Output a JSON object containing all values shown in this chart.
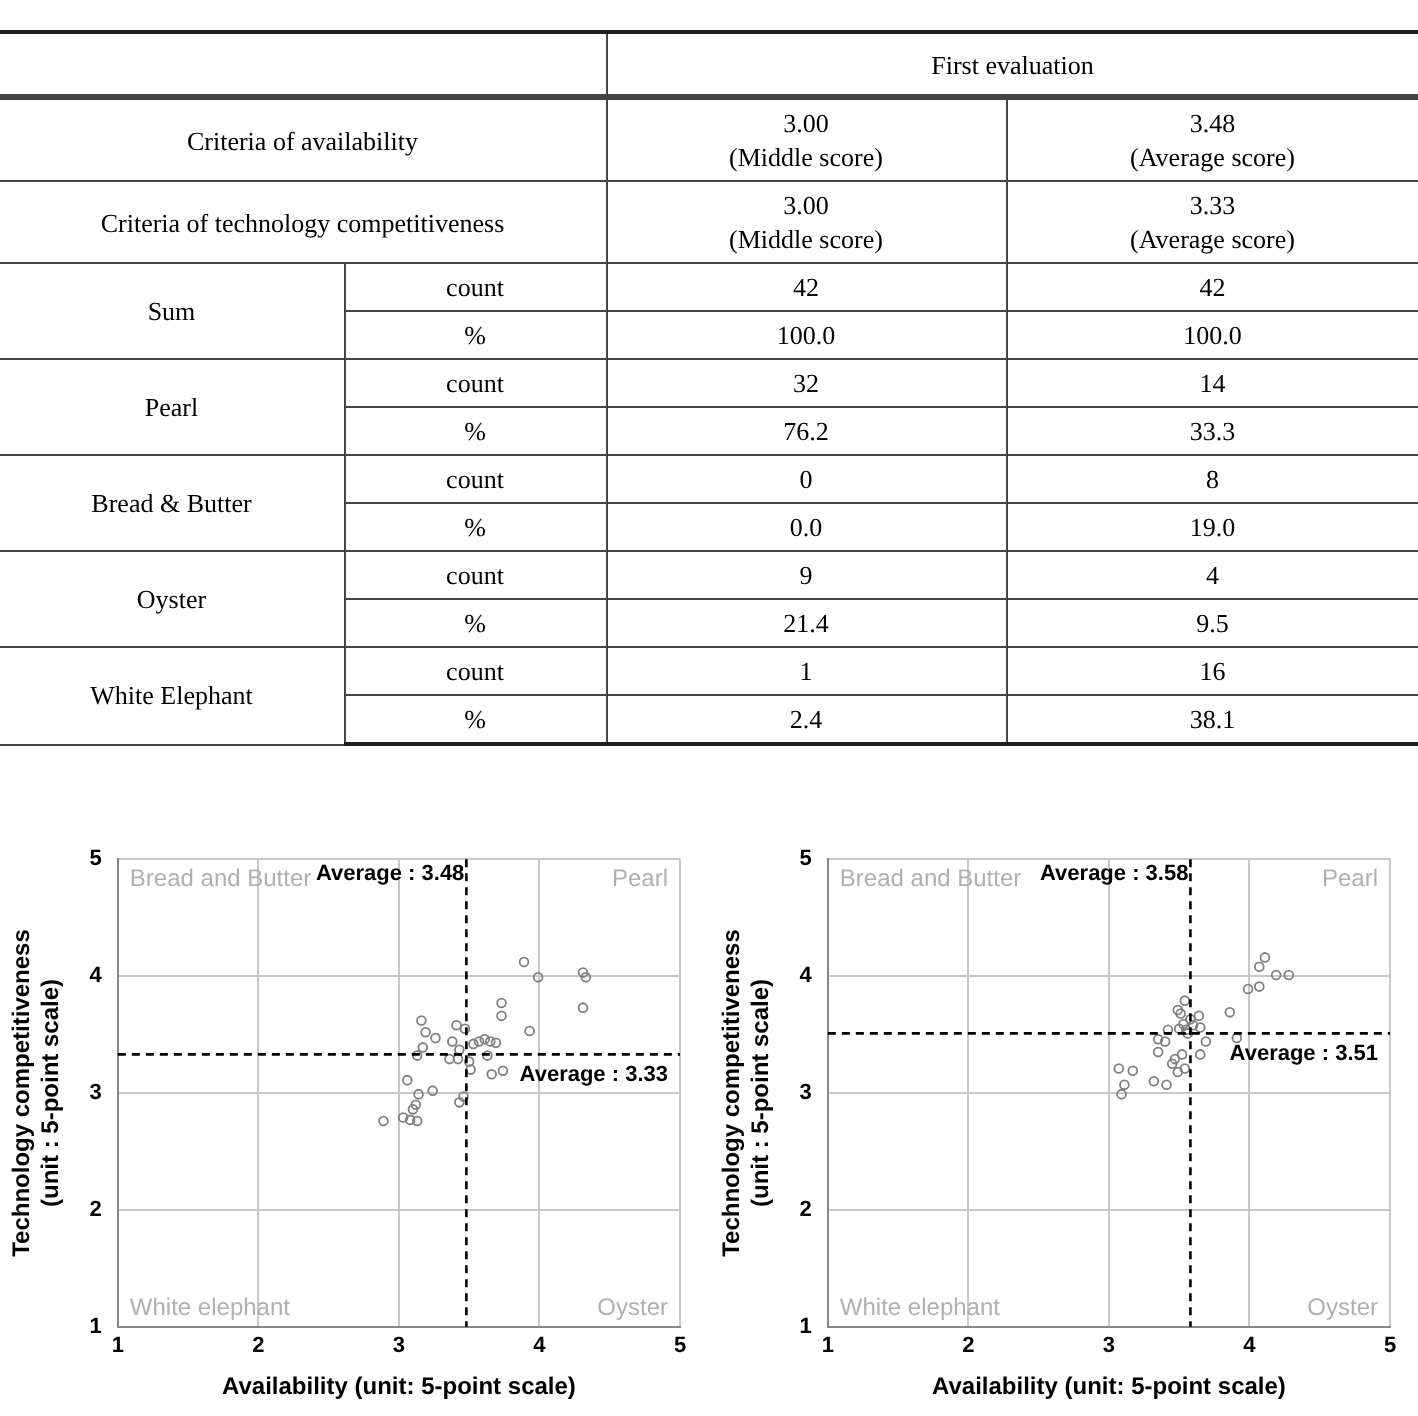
{
  "chart_data": [
    {
      "type": "other",
      "annotations": [
        "First evaluation",
        "Criteria of availability",
        "3.00\n(Middle score)",
        "3.48\n(Average score)",
        "Criteria of technology competitiveness",
        "3.00\n(Middle score)",
        "3.33\n(Average score)",
        "Sum",
        "count",
        "42",
        "42",
        "%",
        "100.0",
        "100.0",
        "Pearl",
        "count",
        "32",
        "14",
        "%",
        "76.2",
        "33.3",
        "Bread & Butter",
        "count",
        "0",
        "8",
        "%",
        "0.0",
        "19.0",
        "Oyster",
        "count",
        "9",
        "4",
        "%",
        "21.4",
        "9.5",
        "White Elephant",
        "count",
        "1",
        "16",
        "%",
        "2.4",
        "38.1"
      ]
    },
    {
      "type": "scatter",
      "xlabel": "Availability (unit: 5-point scale)",
      "ylabel": "Technology competitiveness\n(unit : 5-point scale)",
      "series": [
        {
          "color": "#808080",
          "x": [
            3.89,
            3.99,
            4.31,
            4.33,
            4.31,
            3.73,
            3.73,
            3.93,
            3.16,
            3.19,
            3.26,
            3.17,
            3.41,
            3.47,
            3.38,
            3.53,
            3.57,
            3.61,
            3.65,
            3.69,
            3.43,
            3.13,
            3.36,
            3.42,
            3.5,
            3.63,
            3.51,
            3.66,
            3.74,
            3.06,
            3.14,
            3.24,
            3.46,
            3.43,
            3.12,
            3.1,
            3.03,
            3.08,
            3.13,
            2.89
          ],
          "values": [
            4.12,
            3.99,
            4.03,
            3.99,
            3.73,
            3.77,
            3.66,
            3.53,
            3.62,
            3.52,
            3.47,
            3.39,
            3.58,
            3.55,
            3.44,
            3.42,
            3.44,
            3.46,
            3.44,
            3.43,
            3.37,
            3.32,
            3.29,
            3.29,
            3.27,
            3.32,
            3.2,
            3.16,
            3.19,
            3.11,
            2.99,
            3.02,
            2.97,
            2.92,
            2.9,
            2.86,
            2.79,
            2.77,
            2.76,
            2.76
          ]
        }
      ],
      "xlim": [
        1,
        5
      ],
      "ylim": [
        1,
        5
      ],
      "xticks": [
        1,
        2,
        3,
        4,
        5
      ],
      "yticks": [
        1,
        2,
        3,
        4,
        5
      ],
      "ref_lines": [
        {
          "axis": "x",
          "value": 3.48,
          "label": "Average : 3.48",
          "line_style": "dashed"
        },
        {
          "axis": "y",
          "value": 3.33,
          "label": "Average : 3.33",
          "line_style": "dashed"
        }
      ],
      "annotations": [
        "Bread and Butter",
        "Pearl",
        "White elephant",
        "Oyster"
      ],
      "grid": true,
      "marker": "circle"
    },
    {
      "type": "scatter",
      "xlabel": "Availability (unit: 5-point scale)",
      "ylabel": "Technology competitiveness\n(unit : 5-point scale)",
      "series": [
        {
          "color": "#808080",
          "x": [
            4.11,
            4.07,
            4.19,
            4.28,
            4.07,
            3.99,
            3.86,
            3.91,
            3.54,
            3.49,
            3.51,
            3.64,
            3.58,
            3.53,
            3.6,
            3.65,
            3.5,
            3.55,
            3.42,
            3.56,
            3.35,
            3.4,
            3.69,
            3.35,
            3.47,
            3.52,
            3.65,
            3.45,
            3.54,
            3.49,
            3.07,
            3.17,
            3.11,
            3.32,
            3.41,
            3.09
          ],
          "values": [
            4.16,
            4.08,
            4.01,
            4.01,
            3.91,
            3.89,
            3.69,
            3.47,
            3.79,
            3.71,
            3.68,
            3.66,
            3.63,
            3.59,
            3.58,
            3.56,
            3.55,
            3.54,
            3.54,
            3.51,
            3.46,
            3.44,
            3.44,
            3.35,
            3.29,
            3.33,
            3.33,
            3.25,
            3.21,
            3.18,
            3.21,
            3.19,
            3.07,
            3.1,
            3.07,
            2.99
          ]
        }
      ],
      "xlim": [
        1,
        5
      ],
      "ylim": [
        1,
        5
      ],
      "xticks": [
        1,
        2,
        3,
        4,
        5
      ],
      "yticks": [
        1,
        2,
        3,
        4,
        5
      ],
      "ref_lines": [
        {
          "axis": "x",
          "value": 3.58,
          "label": "Average : 3.58",
          "line_style": "dashed"
        },
        {
          "axis": "y",
          "value": 3.51,
          "label": "Average : 3.51",
          "line_style": "dashed"
        }
      ],
      "annotations": [
        "Bread and Butter",
        "Pearl",
        "White elephant",
        "Oyster"
      ],
      "grid": true,
      "marker": "circle"
    }
  ]
}
